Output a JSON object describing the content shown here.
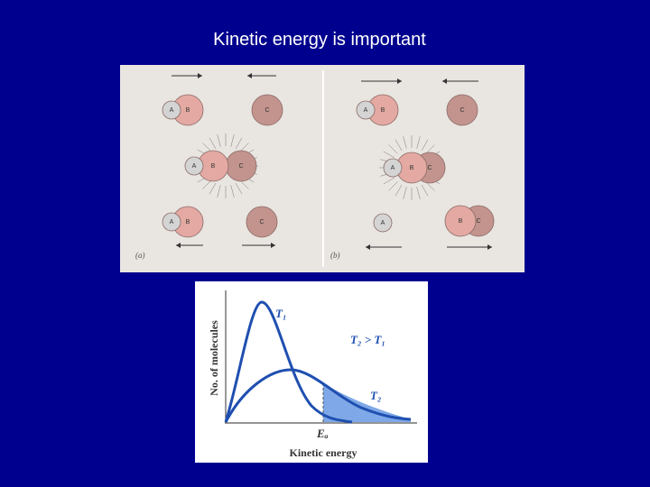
{
  "title": "Kinetic energy is important",
  "collision_diagram": {
    "panels": [
      {
        "label": "(a)"
      },
      {
        "label": "(b)"
      }
    ],
    "atoms": [
      "A",
      "B",
      "C"
    ]
  },
  "energy_plot": {
    "y_axis_label": "No. of molecules",
    "x_axis_label": "Kinetic energy",
    "curves": [
      "T₁",
      "T₂"
    ],
    "comparison": "T₂ > T₁",
    "threshold_label": "Eₐ"
  }
}
